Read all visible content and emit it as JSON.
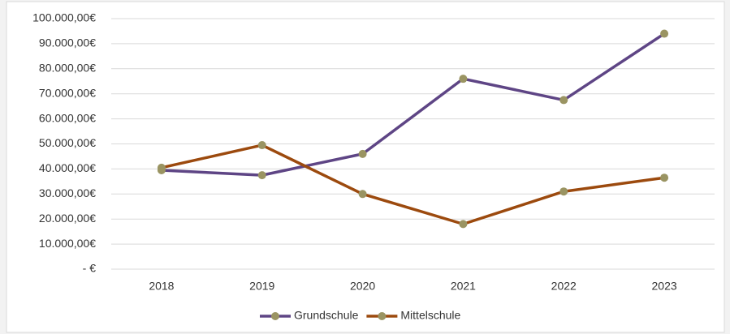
{
  "chart_data": {
    "type": "line",
    "categories": [
      "2018",
      "2019",
      "2020",
      "2021",
      "2022",
      "2023"
    ],
    "series": [
      {
        "name": "Grundschule",
        "color": "#5e4585",
        "marker_color": "#9a9462",
        "values": [
          39500,
          37500,
          46000,
          76000,
          67500,
          94000
        ]
      },
      {
        "name": "Mittelschule",
        "color": "#9c4a0e",
        "marker_color": "#9a9462",
        "values": [
          40500,
          49500,
          30000,
          18000,
          31000,
          36500
        ]
      }
    ],
    "ylim": [
      0,
      100000
    ],
    "yticks": [
      {
        "value": 0,
        "label": "-  €"
      },
      {
        "value": 10000,
        "label": "10.000,00€"
      },
      {
        "value": 20000,
        "label": "20.000,00€"
      },
      {
        "value": 30000,
        "label": "30.000,00€"
      },
      {
        "value": 40000,
        "label": "40.000,00€"
      },
      {
        "value": 50000,
        "label": "50.000,00€"
      },
      {
        "value": 60000,
        "label": "60.000,00€"
      },
      {
        "value": 70000,
        "label": "70.000,00€"
      },
      {
        "value": 80000,
        "label": "80.000,00€"
      },
      {
        "value": 90000,
        "label": "90.000,00€"
      },
      {
        "value": 100000,
        "label": "100.000,00€"
      }
    ],
    "grid": true,
    "legend": "bottom"
  }
}
